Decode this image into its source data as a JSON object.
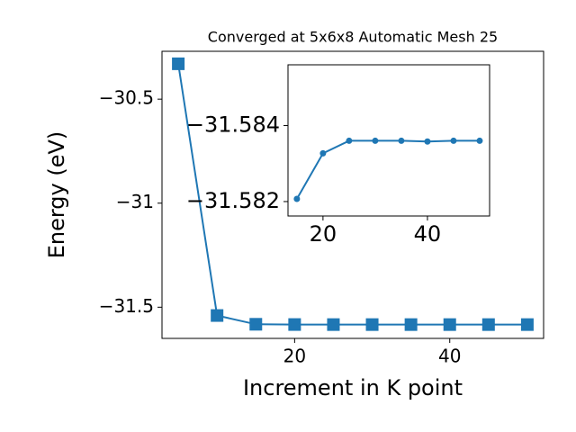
{
  "chart_data": [
    {
      "type": "line",
      "title": "Converged at 5x6x8 Automatic Mesh 25",
      "x_label": "Increment in K point",
      "y_label": "Energy (eV)",
      "x": [
        5,
        10,
        15,
        20,
        25,
        30,
        35,
        40,
        45,
        50
      ],
      "series": [
        {
          "color": "#1f77b4",
          "marker": "square",
          "values": [
            -30.33,
            -31.54,
            -31.5821,
            -31.5833,
            -31.5836,
            -31.5836,
            -31.5836,
            -31.5836,
            -31.5836,
            -31.5836
          ]
        }
      ],
      "xlim": [
        2.9,
        52.1
      ],
      "ylim": [
        -31.65,
        -30.27
      ],
      "xticks": [
        20,
        40
      ],
      "yticks": [
        -30.5,
        -31.0,
        -31.5
      ]
    },
    {
      "type": "line",
      "x": [
        15,
        20,
        25,
        30,
        35,
        40,
        45,
        50
      ],
      "series": [
        {
          "color": "#1f77b4",
          "marker": "circle",
          "values": [
            -31.58207,
            -31.58327,
            -31.5836,
            -31.5836,
            -31.5836,
            -31.58358,
            -31.5836,
            -31.5836
          ]
        }
      ],
      "xlim": [
        13.3,
        51.9
      ],
      "ylim": [
        -31.58162,
        -31.5856
      ],
      "xticks": [
        20,
        40
      ],
      "yticks": [
        -31.584,
        -31.582
      ]
    }
  ]
}
